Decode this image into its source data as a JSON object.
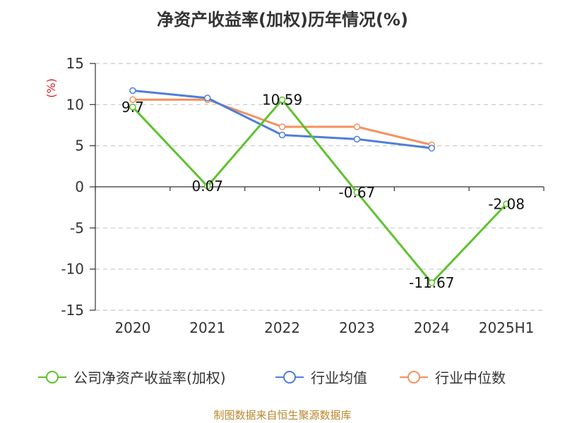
{
  "title": "净资产收益率(加权)历年情况(%)",
  "source": "制图数据来自恒生聚源数据库",
  "chart_data": {
    "type": "line",
    "categories": [
      "2020",
      "2021",
      "2022",
      "2023",
      "2024",
      "2025H1"
    ],
    "ylabel": "(%)",
    "ylim": [
      -15,
      15
    ],
    "yticks": [
      "15",
      "10",
      "5",
      "0",
      "-5",
      "-10",
      "-15"
    ],
    "grid": true,
    "legend_position": "bottom",
    "series": [
      {
        "name": "公司净资产收益率(加权)",
        "color": "#5ec22f",
        "values": [
          9.7,
          0.07,
          10.59,
          -0.67,
          -11.67,
          -2.08
        ],
        "labels": [
          "9.7",
          "0.07",
          "10.59",
          "-0.67",
          "-11.67",
          "-2.08"
        ]
      },
      {
        "name": "行业均值",
        "color": "#4e7fd8",
        "values": [
          11.7,
          10.8,
          6.3,
          5.8,
          4.7,
          null
        ]
      },
      {
        "name": "行业中位数",
        "color": "#f5915e",
        "values": [
          10.6,
          10.6,
          7.3,
          7.3,
          5.1,
          null
        ]
      }
    ]
  }
}
